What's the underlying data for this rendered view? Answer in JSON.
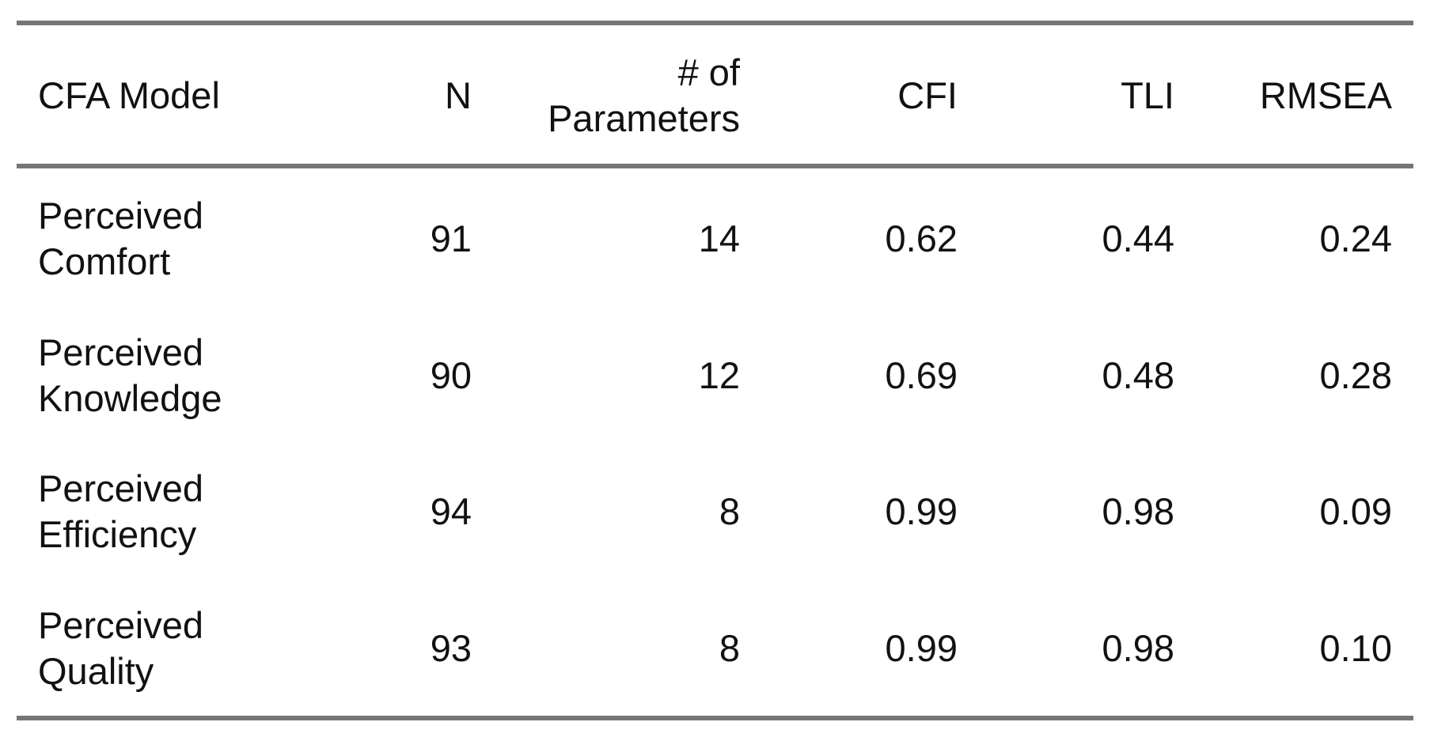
{
  "table": {
    "header": [
      "CFA Model",
      "N",
      "# of Parameters",
      "CFI",
      "TLI",
      "RMSEA"
    ],
    "rows": [
      [
        "Perceived Comfort",
        "91",
        "14",
        "0.62",
        "0.44",
        "0.24"
      ],
      [
        "Perceived Knowledge",
        "90",
        "12",
        "0.69",
        "0.48",
        "0.28"
      ],
      [
        "Perceived Efficiency",
        "94",
        "8",
        "0.99",
        "0.98",
        "0.09"
      ],
      [
        "Perceived Quality",
        "93",
        "8",
        "0.99",
        "0.98",
        "0.10"
      ]
    ]
  }
}
